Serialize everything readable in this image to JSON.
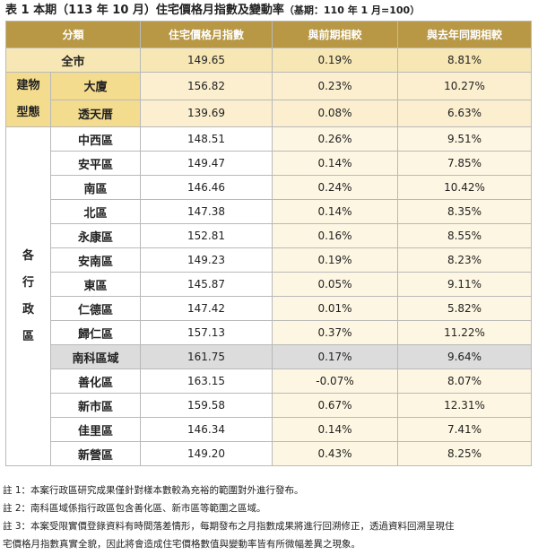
{
  "title": {
    "main": "表 1 本期（113 年 10 月）住宅價格月指數及變動率",
    "base": "（基期：110 年 1 月=100）"
  },
  "table": {
    "headers": [
      "分類",
      "住宅價格月指數",
      "與前期相較",
      "與去年同期相較"
    ],
    "total": {
      "label": "全市",
      "index": "149.65",
      "mom": "0.19%",
      "yoy": "8.81%"
    },
    "building_type_group": [
      "建物",
      "型態"
    ],
    "building_types": [
      {
        "label": "大廈",
        "index": "156.82",
        "mom": "0.23%",
        "yoy": "10.27%"
      },
      {
        "label": "透天厝",
        "index": "139.69",
        "mom": "0.08%",
        "yoy": "6.63%"
      }
    ],
    "district_group": [
      "各",
      "行",
      "政",
      "區"
    ],
    "districts": [
      {
        "label": "中西區",
        "index": "148.51",
        "mom": "0.26%",
        "yoy": "9.51%"
      },
      {
        "label": "安平區",
        "index": "149.47",
        "mom": "0.14%",
        "yoy": "7.85%"
      },
      {
        "label": "南區",
        "index": "146.46",
        "mom": "0.24%",
        "yoy": "10.42%"
      },
      {
        "label": "北區",
        "index": "147.38",
        "mom": "0.14%",
        "yoy": "8.35%"
      },
      {
        "label": "永康區",
        "index": "152.81",
        "mom": "0.16%",
        "yoy": "8.55%"
      },
      {
        "label": "安南區",
        "index": "149.23",
        "mom": "0.19%",
        "yoy": "8.23%"
      },
      {
        "label": "東區",
        "index": "145.87",
        "mom": "0.05%",
        "yoy": "9.11%"
      },
      {
        "label": "仁德區",
        "index": "147.42",
        "mom": "0.01%",
        "yoy": "5.82%"
      },
      {
        "label": "歸仁區",
        "index": "157.13",
        "mom": "0.37%",
        "yoy": "11.22%"
      },
      {
        "label": "南科區域",
        "index": "161.75",
        "mom": "0.17%",
        "yoy": "9.64%"
      },
      {
        "label": "善化區",
        "index": "163.15",
        "mom": "-0.07%",
        "yoy": "8.07%"
      },
      {
        "label": "新市區",
        "index": "159.58",
        "mom": "0.67%",
        "yoy": "12.31%"
      },
      {
        "label": "佳里區",
        "index": "146.34",
        "mom": "0.14%",
        "yoy": "7.41%"
      },
      {
        "label": "新營區",
        "index": "149.20",
        "mom": "0.43%",
        "yoy": "8.25%"
      }
    ]
  },
  "notes": [
    "註 1：本案行政區研究成果僅針對樣本數較為充裕的範圍對外進行發布。",
    "註 2：南科區域係指行政區包含善化區、新市區等範圍之區域。",
    "註 3：本案受限實價登錄資料有時間落差情形，每期發布之月指數成果將進行回溯修正，透過資料回溯呈現住",
    "宅價格月指數真實全貌，因此將會造成住宅價格數值與變動率皆有所微幅差異之現象。"
  ],
  "colors": {
    "header": "#b89845",
    "total_row": "#f7e7b5",
    "building_label": "#f4dc8e",
    "building_cells": "#fbefcf",
    "change_cells": "#fdf6e2",
    "highlight_row": "#dcdcdc"
  }
}
